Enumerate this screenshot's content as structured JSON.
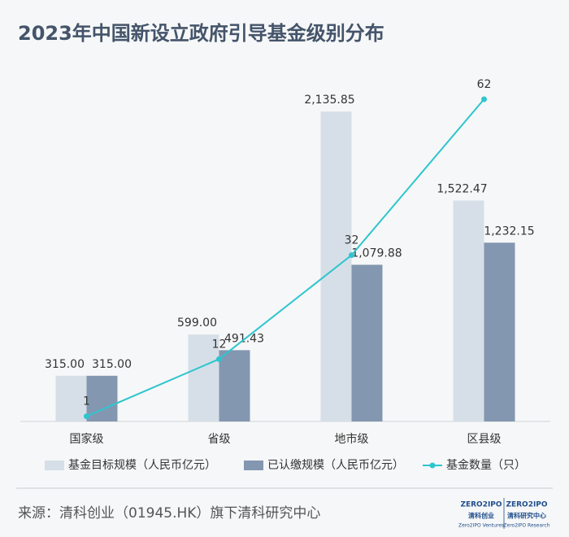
{
  "chart_data": {
    "type": "bar_line",
    "title": "2023年中国新设立政府引导基金级别分布",
    "categories": [
      "国家级",
      "省级",
      "地市级",
      "区县级"
    ],
    "series": [
      {
        "name": "基金目标规模（人民币亿元）",
        "type": "bar",
        "color": "#d6dfe7",
        "values": [
          315.0,
          599.0,
          2135.85,
          1522.47
        ],
        "value_labels": [
          "315.00",
          "599.00",
          "2,135.85",
          "1,522.47"
        ]
      },
      {
        "name": "已认缴规模（人民币亿元）",
        "type": "bar",
        "color": "#8497b0",
        "values": [
          315.0,
          491.43,
          1079.88,
          1232.15
        ],
        "value_labels": [
          "315.00",
          "491.43",
          "1,079.88",
          "1,232.15"
        ]
      },
      {
        "name": "基金数量（只）",
        "type": "line",
        "axis": "y2",
        "color": "#2ec5cf",
        "values": [
          1,
          12,
          32,
          62
        ]
      }
    ],
    "ylim": [
      0,
      2400
    ],
    "y2lim": [
      0,
      67
    ],
    "legend": "bottom",
    "source": "来源：清科创业（01945.HK）旗下清科研究中心",
    "logos": [
      {
        "mark": "ZERO2IPO",
        "name": "清科创业",
        "sub": "Zero2IPO Ventures"
      },
      {
        "mark": "ZERO2IPO",
        "name": "清科研究中心",
        "sub": "Zero2IPO Research"
      }
    ]
  }
}
